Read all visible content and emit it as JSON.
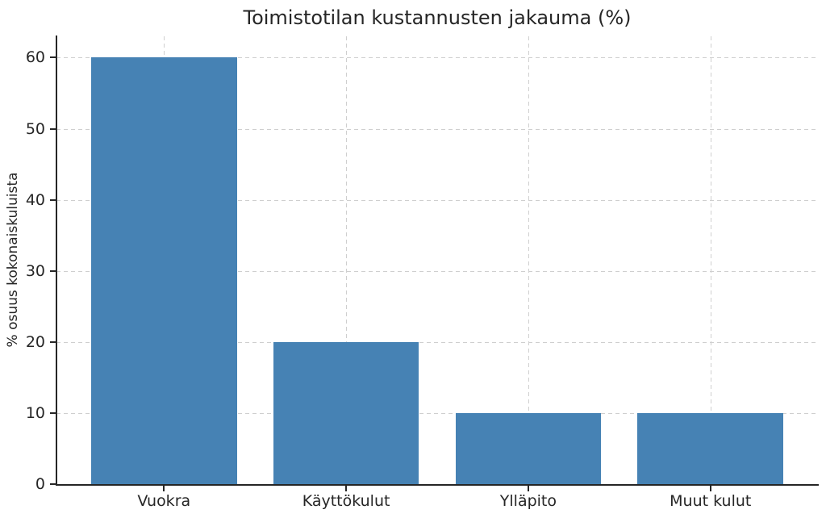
{
  "chart_data": {
    "type": "bar",
    "title": "Toimistotilan kustannusten jakauma (%)",
    "xlabel": "",
    "ylabel": "% osuus kokonaiskuluista",
    "categories": [
      "Vuokra",
      "Käyttökulut",
      "Ylläpito",
      "Muut kulut"
    ],
    "values": [
      60,
      20,
      10,
      10
    ],
    "yticks": [
      0,
      10,
      20,
      30,
      40,
      50,
      60
    ],
    "ylim": [
      0,
      63
    ],
    "bar_color": "#4682b4",
    "grid": true,
    "grid_color": "#cfcfcf",
    "grid_style": "dashed",
    "axis_color": "#262626",
    "text_color": "#262626",
    "background_color": "#ffffff",
    "legend": false
  }
}
